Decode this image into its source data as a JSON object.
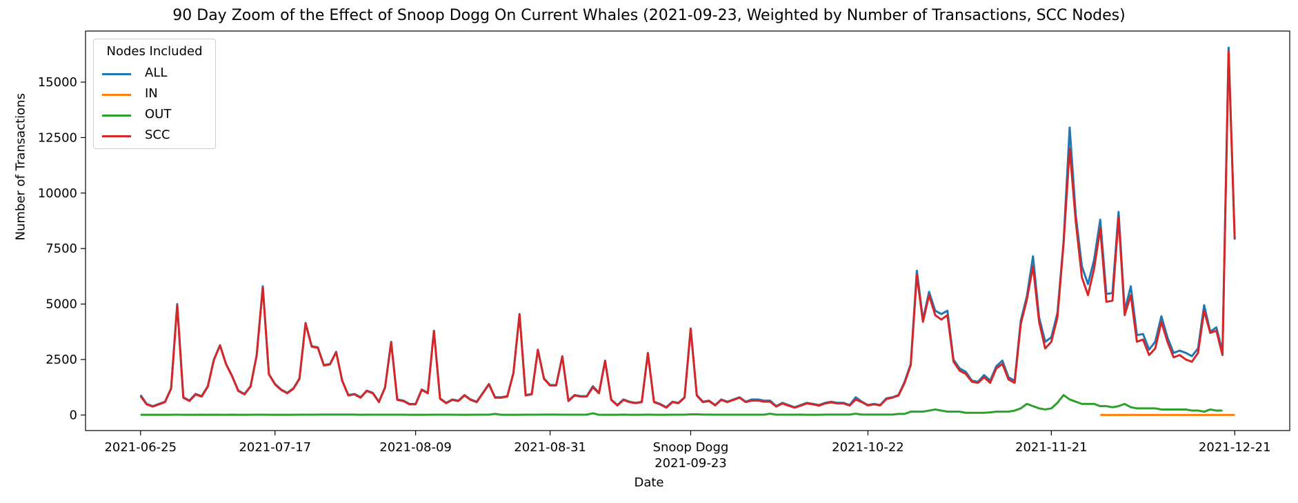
{
  "chart_data": {
    "type": "line",
    "title": "90 Day Zoom of the Effect of Snoop Dogg On Current Whales (2021-09-23, Weighted by Number of Transactions, SCC Nodes)",
    "xlabel": "Date",
    "ylabel": "Number of Transactions",
    "x_start": "2021-06-25",
    "x_end": "2021-12-21",
    "x_range": [
      "2021-06-16",
      "2021-12-30"
    ],
    "ylim": [
      -700,
      17300
    ],
    "yticks": [
      0,
      2500,
      5000,
      7500,
      10000,
      12500,
      15000
    ],
    "ytick_labels": [
      "0",
      "2500",
      "5000",
      "7500",
      "10000",
      "12500",
      "15000"
    ],
    "xticks": [
      {
        "date": "2021-06-25",
        "label": "2021-06-25",
        "sublabel": ""
      },
      {
        "date": "2021-07-17",
        "label": "2021-07-17",
        "sublabel": ""
      },
      {
        "date": "2021-08-09",
        "label": "2021-08-09",
        "sublabel": ""
      },
      {
        "date": "2021-08-31",
        "label": "2021-08-31",
        "sublabel": ""
      },
      {
        "date": "2021-09-23",
        "label": "Snoop Dogg",
        "sublabel": "2021-09-23"
      },
      {
        "date": "2021-10-22",
        "label": "2021-10-22",
        "sublabel": ""
      },
      {
        "date": "2021-11-21",
        "label": "2021-11-21",
        "sublabel": ""
      },
      {
        "date": "2021-12-21",
        "label": "2021-12-21",
        "sublabel": ""
      }
    ],
    "grid": false,
    "legend_title": "Nodes Included",
    "legend_position": "upper left",
    "series": [
      {
        "name": "ALL",
        "color": "#1f77b4",
        "start": "2021-06-25",
        "values": [
          900,
          500,
          400,
          500,
          600,
          1200,
          5000,
          800,
          650,
          950,
          850,
          1300,
          2500,
          3150,
          2300,
          1750,
          1100,
          950,
          1300,
          2700,
          5800,
          1850,
          1400,
          1150,
          1000,
          1200,
          1650,
          4150,
          3100,
          3050,
          2250,
          2300,
          2850,
          1550,
          900,
          950,
          800,
          1100,
          1000,
          600,
          1250,
          3300,
          700,
          650,
          500,
          500,
          1150,
          1000,
          3800,
          750,
          550,
          700,
          650,
          900,
          700,
          600,
          1000,
          1400,
          800,
          800,
          850,
          1900,
          4550,
          900,
          950,
          2950,
          1650,
          1350,
          1350,
          2650,
          650,
          900,
          850,
          850,
          1300,
          1000,
          2450,
          700,
          450,
          700,
          600,
          550,
          600,
          2800,
          600,
          500,
          350,
          600,
          550,
          800,
          3900,
          900,
          600,
          650,
          450,
          700,
          600,
          700,
          800,
          600,
          700,
          700,
          650,
          650,
          400,
          550,
          450,
          350,
          450,
          550,
          500,
          450,
          550,
          600,
          550,
          550,
          450,
          800,
          600,
          450,
          500,
          450,
          750,
          800,
          900,
          1500,
          2300,
          6500,
          4300,
          5550,
          4700,
          4550,
          4700,
          2500,
          2100,
          1950,
          1550,
          1500,
          1800,
          1550,
          2200,
          2450,
          1700,
          1550,
          4250,
          5350,
          7150,
          4400,
          3300,
          3500,
          4600,
          7800,
          12950,
          9000,
          6700,
          5900,
          7000,
          8800,
          5450,
          5500,
          9150,
          4700,
          5800,
          3600,
          3650,
          2950,
          3300,
          4450,
          3500,
          2800,
          2900,
          2800,
          2650,
          3000,
          4950,
          3750,
          3950,
          2850,
          16550,
          7900
        ]
      },
      {
        "name": "IN",
        "color": "#ff7f0e",
        "start": "2021-11-29",
        "values": [
          5,
          5,
          5,
          5,
          5,
          5,
          5,
          5,
          5,
          5,
          5,
          5,
          5,
          5,
          5,
          5,
          5,
          5,
          5,
          5,
          5,
          5,
          5
        ]
      },
      {
        "name": "OUT",
        "color": "#2ca02c",
        "start": "2021-06-25",
        "values": [
          10,
          10,
          10,
          10,
          10,
          10,
          15,
          10,
          10,
          10,
          15,
          10,
          15,
          10,
          10,
          15,
          10,
          10,
          10,
          15,
          15,
          10,
          10,
          10,
          10,
          10,
          15,
          15,
          15,
          20,
          20,
          20,
          20,
          20,
          20,
          20,
          10,
          15,
          15,
          15,
          15,
          15,
          15,
          15,
          10,
          10,
          10,
          10,
          15,
          15,
          15,
          15,
          10,
          10,
          10,
          15,
          15,
          15,
          50,
          10,
          10,
          10,
          10,
          15,
          15,
          15,
          20,
          20,
          20,
          15,
          15,
          15,
          15,
          15,
          80,
          10,
          10,
          10,
          10,
          20,
          10,
          10,
          10,
          20,
          10,
          10,
          10,
          15,
          15,
          15,
          30,
          30,
          20,
          20,
          15,
          15,
          15,
          15,
          15,
          15,
          15,
          15,
          15,
          60,
          15,
          15,
          15,
          15,
          20,
          10,
          10,
          10,
          20,
          20,
          20,
          20,
          20,
          60,
          20,
          20,
          20,
          20,
          20,
          20,
          50,
          50,
          150,
          150,
          150,
          200,
          250,
          200,
          150,
          150,
          150,
          100,
          100,
          100,
          100,
          120,
          150,
          150,
          150,
          200,
          300,
          500,
          400,
          300,
          250,
          300,
          550,
          900,
          700,
          600,
          500,
          500,
          500,
          400,
          400,
          350,
          400,
          500,
          350,
          300,
          300,
          300,
          300,
          250,
          250,
          250,
          250,
          250,
          200,
          200,
          150,
          250,
          200,
          200
        ]
      },
      {
        "name": "SCC",
        "color": "#d62728",
        "start": "2021-06-25",
        "values": [
          850,
          480,
          380,
          480,
          580,
          1180,
          4950,
          780,
          630,
          930,
          830,
          1280,
          2480,
          3130,
          2280,
          1730,
          1080,
          930,
          1280,
          2680,
          5750,
          1830,
          1380,
          1130,
          980,
          1180,
          1630,
          4130,
          3080,
          3030,
          2230,
          2280,
          2830,
          1530,
          880,
          930,
          780,
          1080,
          980,
          580,
          1230,
          3280,
          680,
          630,
          480,
          480,
          1130,
          980,
          3780,
          730,
          530,
          680,
          630,
          880,
          680,
          580,
          980,
          1380,
          780,
          780,
          830,
          1880,
          4530,
          880,
          930,
          2930,
          1630,
          1330,
          1330,
          2630,
          630,
          880,
          830,
          830,
          1250,
          980,
          2430,
          680,
          430,
          680,
          580,
          530,
          580,
          2780,
          580,
          480,
          330,
          580,
          530,
          780,
          3880,
          880,
          580,
          630,
          430,
          680,
          580,
          680,
          780,
          580,
          650,
          650,
          600,
          600,
          380,
          520,
          420,
          330,
          420,
          520,
          480,
          420,
          520,
          570,
          520,
          520,
          430,
          700,
          580,
          430,
          480,
          430,
          720,
          780,
          880,
          1450,
          2250,
          6300,
          4200,
          5400,
          4500,
          4300,
          4500,
          2400,
          2000,
          1850,
          1500,
          1450,
          1700,
          1450,
          2100,
          2300,
          1600,
          1450,
          4100,
          5200,
          6700,
          4200,
          3000,
          3300,
          4400,
          7700,
          12000,
          8700,
          6200,
          5400,
          6600,
          8400,
          5100,
          5150,
          8900,
          4500,
          5400,
          3300,
          3400,
          2700,
          3000,
          4200,
          3300,
          2600,
          2700,
          2500,
          2400,
          2800,
          4700,
          3700,
          3800,
          2700,
          16400,
          7950
        ]
      }
    ]
  }
}
